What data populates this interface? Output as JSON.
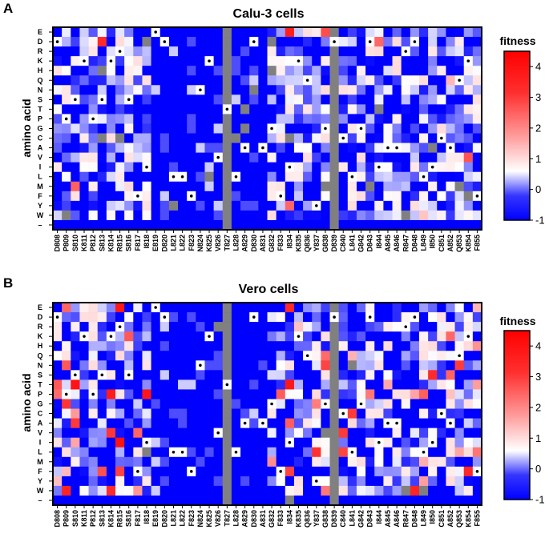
{
  "figure": {
    "panels": [
      {
        "id": "A",
        "title": "Calu-3 cells",
        "colorbar_label": "fitness"
      },
      {
        "id": "B",
        "title": "Vero cells",
        "colorbar_label": "fitness"
      }
    ]
  },
  "chart_data": [
    {
      "type": "heatmap",
      "panel": "A",
      "title": "Calu-3 cells",
      "ylabel": "amino acid",
      "xlabel": "",
      "rows": [
        "E",
        "D",
        "R",
        "K",
        "H",
        "Q",
        "N",
        "S",
        "T",
        "P",
        "G",
        "C",
        "A",
        "V",
        "I",
        "L",
        "M",
        "F",
        "Y",
        "W",
        "–"
      ],
      "columns": [
        "D808",
        "P809",
        "S810",
        "K811",
        "P812",
        "S813",
        "K814",
        "R815",
        "S816",
        "F817",
        "I818",
        "E819",
        "D820",
        "L821",
        "L822",
        "F823",
        "N824",
        "K825",
        "V826",
        "T827",
        "L828",
        "A829",
        "D830",
        "A831",
        "G832",
        "F833",
        "I834",
        "K835",
        "Q836",
        "Y837",
        "G838",
        "D839",
        "C840",
        "L841",
        "G842",
        "D843",
        "I844",
        "A845",
        "A846",
        "R847",
        "D848",
        "L849",
        "I850",
        "C851",
        "A852",
        "Q853",
        "K854",
        "F855"
      ],
      "wildtype": [
        "D",
        "P",
        "S",
        "K",
        "P",
        "S",
        "K",
        "R",
        "S",
        "F",
        "I",
        "E",
        "D",
        "L",
        "L",
        "F",
        "N",
        "K",
        "V",
        "T",
        "L",
        "A",
        "D",
        "A",
        "G",
        "F",
        "I",
        "K",
        "Q",
        "Y",
        "G",
        "D",
        "C",
        "L",
        "G",
        "D",
        "I",
        "A",
        "A",
        "R",
        "D",
        "L",
        "I",
        "C",
        "A",
        "Q",
        "K",
        "F"
      ],
      "missing_columns": [
        "T827",
        "D839"
      ],
      "color_scale": {
        "min": -1,
        "max": 4.5,
        "ticks": [
          -1,
          0,
          1,
          2,
          3,
          4
        ],
        "colors": {
          "low": "#0000ff",
          "mid": "#ffffff",
          "high": "#ff0000",
          "missing": "#808080"
        }
      }
    },
    {
      "type": "heatmap",
      "panel": "B",
      "title": "Vero cells",
      "ylabel": "amino acid",
      "xlabel": "",
      "rows": [
        "E",
        "D",
        "R",
        "K",
        "H",
        "Q",
        "N",
        "S",
        "T",
        "P",
        "G",
        "C",
        "A",
        "V",
        "I",
        "L",
        "M",
        "F",
        "Y",
        "W",
        "–"
      ],
      "columns": [
        "D808",
        "P809",
        "S810",
        "K811",
        "P812",
        "S813",
        "K814",
        "R815",
        "S816",
        "F817",
        "I818",
        "E819",
        "D820",
        "L821",
        "L822",
        "F823",
        "N824",
        "K825",
        "V826",
        "T827",
        "L828",
        "A829",
        "D830",
        "A831",
        "G832",
        "F833",
        "I834",
        "K835",
        "Q836",
        "Y837",
        "G838",
        "D839",
        "C840",
        "L841",
        "G842",
        "D843",
        "I844",
        "A845",
        "A846",
        "R847",
        "D848",
        "L849",
        "I850",
        "C851",
        "A852",
        "Q853",
        "K854",
        "F855"
      ],
      "wildtype": [
        "D",
        "P",
        "S",
        "K",
        "P",
        "S",
        "K",
        "R",
        "S",
        "F",
        "I",
        "E",
        "D",
        "L",
        "L",
        "F",
        "N",
        "K",
        "V",
        "T",
        "L",
        "A",
        "D",
        "A",
        "G",
        "F",
        "I",
        "K",
        "Q",
        "Y",
        "G",
        "D",
        "C",
        "L",
        "G",
        "D",
        "I",
        "A",
        "A",
        "R",
        "D",
        "L",
        "I",
        "C",
        "A",
        "Q",
        "K",
        "F"
      ],
      "missing_columns": [
        "T827",
        "D839"
      ],
      "color_scale": {
        "min": -1,
        "max": 4.5,
        "ticks": [
          -1,
          0,
          1,
          2,
          3,
          4
        ],
        "colors": {
          "low": "#0000ff",
          "mid": "#ffffff",
          "high": "#ff0000",
          "missing": "#808080"
        }
      }
    }
  ]
}
